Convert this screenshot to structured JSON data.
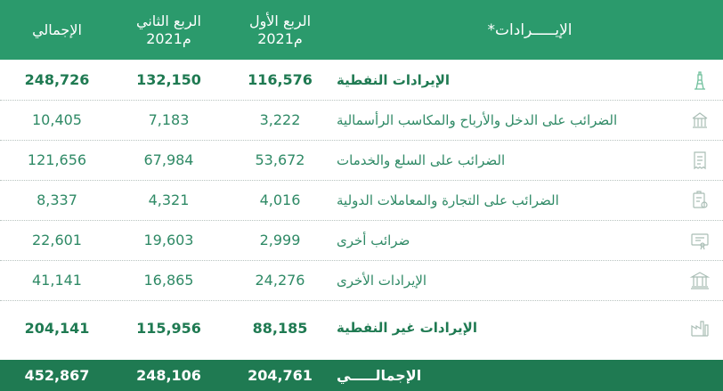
{
  "header": {
    "label": "الإيـــــرادات*",
    "q1_line1": "الربع الأول",
    "q1_line2": "2021م",
    "q2_line1": "الربع الثاني",
    "q2_line2": "2021م",
    "total": "الإجمالي"
  },
  "rows": [
    {
      "label": "الإيرادات النفطية",
      "q1": "116,576",
      "q2": "132,150",
      "total": "248,726",
      "icon": "oil-pump-icon"
    },
    {
      "label": "الضرائب على الدخل والأرباح والمكاسب الرأسمالية",
      "q1": "3,222",
      "q2": "7,183",
      "total": "10,405",
      "icon": "bank-building-icon"
    },
    {
      "label": "الضرائب على السلع والخدمات",
      "q1": "53,672",
      "q2": "67,984",
      "total": "121,656",
      "icon": "receipt-icon"
    },
    {
      "label": "الضرائب على التجارة والمعاملات الدولية",
      "q1": "4,016",
      "q2": "4,321",
      "total": "8,337",
      "icon": "clipboard-trade-icon"
    },
    {
      "label": "ضرائب أخرى",
      "q1": "2,999",
      "q2": "19,603",
      "total": "22,601",
      "icon": "certificate-icon"
    },
    {
      "label": "الإيرادات الأخرى",
      "q1": "24,276",
      "q2": "16,865",
      "total": "41,141",
      "icon": "government-building-icon"
    },
    {
      "label": "الإيرادات غير النفطية",
      "q1": "88,185",
      "q2": "115,956",
      "total": "204,141",
      "icon": "factory-icon"
    }
  ],
  "footer": {
    "label": "الإجمالـــــي",
    "q1": "204,761",
    "q2": "248,106",
    "total": "452,867"
  },
  "colors": {
    "header_bg": "#2b9a6c",
    "footer_bg": "#1f7a52",
    "text": "#2f8a66"
  }
}
